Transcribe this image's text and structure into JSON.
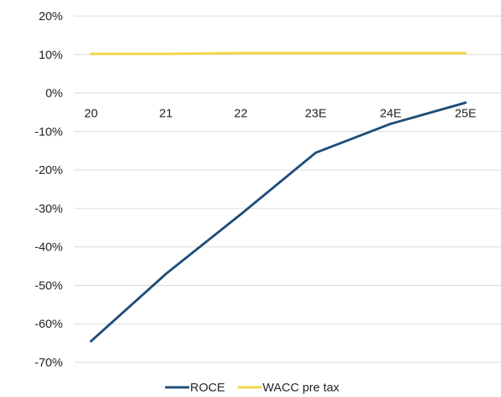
{
  "chart_data": {
    "type": "line",
    "categories": [
      "20",
      "21",
      "22",
      "23E",
      "24E",
      "25E"
    ],
    "series": [
      {
        "name": "ROCE",
        "values": [
          -64.5,
          -47.0,
          -31.5,
          -15.5,
          -8.0,
          -2.5
        ],
        "color": "#1F4E79"
      },
      {
        "name": "WACC pre tax",
        "values": [
          10.2,
          10.2,
          10.4,
          10.4,
          10.4,
          10.4
        ],
        "color": "#F5D547"
      }
    ],
    "yticks": [
      "20%",
      "10%",
      "0%",
      "-10%",
      "-20%",
      "-30%",
      "-40%",
      "-50%",
      "-60%",
      "-70%"
    ],
    "ylim": [
      -70,
      20
    ],
    "grid": true,
    "legend": "bottom",
    "gridline_color": "#D9D9D9"
  }
}
